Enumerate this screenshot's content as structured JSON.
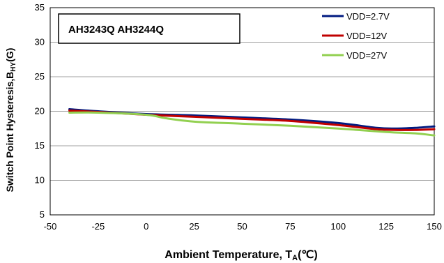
{
  "chart_data": {
    "type": "line",
    "title": "AH3243Q AH3244Q",
    "xlabel_main": "Ambient  Temperature, T",
    "xlabel_sub": "A",
    "xlabel_unit": "(℃)",
    "ylabel_main": "Switch Point Hysteresis,B",
    "ylabel_sub": "HY",
    "ylabel_unit": "(G)",
    "xlim": [
      -50,
      150
    ],
    "ylim": [
      5,
      35
    ],
    "x_ticks": [
      -50,
      -25,
      0,
      25,
      50,
      75,
      100,
      125,
      150
    ],
    "y_ticks": [
      5,
      10,
      15,
      20,
      25,
      30,
      35
    ],
    "x_tick_labels": [
      "-50",
      "-25",
      "0",
      "25",
      "50",
      "75",
      "100",
      "125",
      "150"
    ],
    "y_tick_labels": [
      "5",
      "10",
      "15",
      "20",
      "25",
      "30",
      "35"
    ],
    "grid": "horizontal",
    "legend_position": "top-right",
    "series": [
      {
        "name": "VDD=2.7V",
        "color": "#001a80",
        "x": [
          -40,
          -25,
          0,
          25,
          50,
          75,
          100,
          120,
          130,
          140,
          150
        ],
        "y": [
          20.3,
          20.0,
          19.6,
          19.4,
          19.1,
          18.8,
          18.3,
          17.6,
          17.5,
          17.6,
          17.8
        ]
      },
      {
        "name": "VDD=12V",
        "color": "#c00000",
        "x": [
          -40,
          -25,
          0,
          25,
          50,
          75,
          100,
          120,
          130,
          140,
          150
        ],
        "y": [
          20.1,
          19.9,
          19.5,
          19.2,
          18.9,
          18.6,
          18.0,
          17.4,
          17.3,
          17.3,
          17.4
        ]
      },
      {
        "name": "VDD=27V",
        "color": "#92d050",
        "x": [
          -40,
          -25,
          0,
          10,
          25,
          50,
          75,
          100,
          125,
          140,
          150
        ],
        "y": [
          19.8,
          19.8,
          19.5,
          19.0,
          18.5,
          18.2,
          17.9,
          17.5,
          17.0,
          16.8,
          16.5
        ]
      }
    ]
  }
}
